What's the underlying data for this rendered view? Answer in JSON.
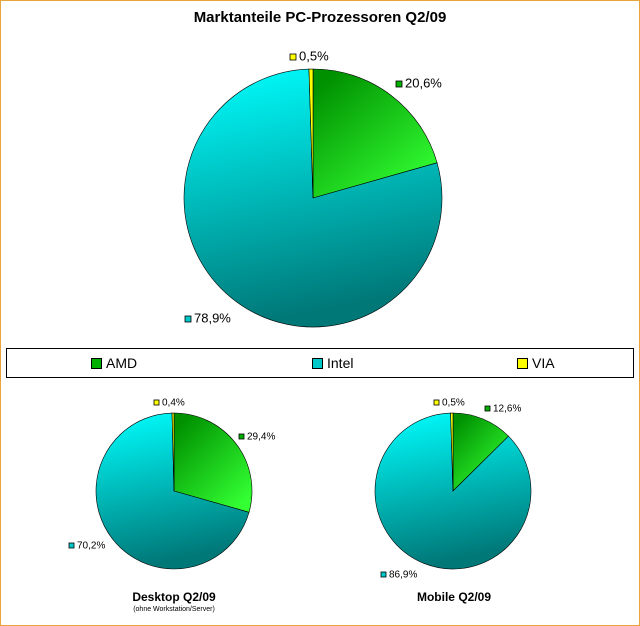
{
  "chart_data": [
    {
      "type": "pie",
      "title": "Marktanteile PC-Prozessoren Q2/09",
      "subtitle": "",
      "series": [
        {
          "name": "AMD",
          "value": 20.6,
          "label": "20,6%"
        },
        {
          "name": "Intel",
          "value": 78.9,
          "label": "78,9%"
        },
        {
          "name": "VIA",
          "value": 0.5,
          "label": "0,5%"
        }
      ]
    },
    {
      "type": "pie",
      "title": "Desktop Q2/09",
      "subtitle": "(ohne Workstation/Server)",
      "series": [
        {
          "name": "AMD",
          "value": 29.4,
          "label": "29,4%"
        },
        {
          "name": "Intel",
          "value": 70.2,
          "label": "70,2%"
        },
        {
          "name": "VIA",
          "value": 0.4,
          "label": "0,4%"
        }
      ]
    },
    {
      "type": "pie",
      "title": "Mobile Q2/09",
      "subtitle": "",
      "series": [
        {
          "name": "AMD",
          "value": 12.6,
          "label": "12,6%"
        },
        {
          "name": "Intel",
          "value": 86.9,
          "label": "86,9%"
        },
        {
          "name": "VIA",
          "value": 0.5,
          "label": "0,5%"
        }
      ]
    }
  ],
  "legend": {
    "placement": "middle",
    "items": [
      {
        "name": "AMD",
        "color": "#00b000"
      },
      {
        "name": "Intel",
        "color": "#00c8c8"
      },
      {
        "name": "VIA",
        "color": "#ffff00"
      }
    ]
  },
  "colors": {
    "amd_light": "#33ff33",
    "amd_dark": "#009000",
    "intel_light": "#00ffff",
    "intel_dark": "#007878",
    "via": "#ffff00",
    "border": "#e8a33a"
  }
}
